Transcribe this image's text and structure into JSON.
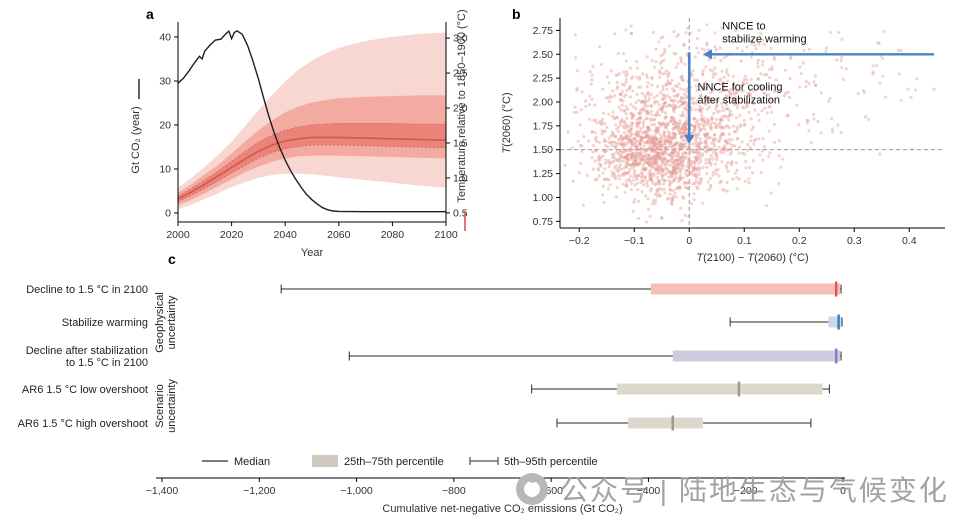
{
  "panels": {
    "a": "a",
    "b": "b",
    "c": "c"
  },
  "watermark": {
    "icon": "aperture-logo-icon",
    "text": "公众号 | 陆地生态与气候变化"
  },
  "chart_data": [
    {
      "id": "panel_a",
      "type": "line",
      "title": "",
      "xlabel": "Year",
      "ylabel_left": "Gt CO₂ (year)",
      "ylabel_right": "Temperature relative to 1850–1900 (°C)",
      "xlim": [
        2000,
        2100
      ],
      "ylim_left": [
        -2.05,
        43.4
      ],
      "ylim_right": [
        0.37,
        3.23
      ],
      "x_ticks": [
        2000,
        2020,
        2040,
        2060,
        2080,
        2100
      ],
      "y_left_ticks": [
        0,
        10,
        20,
        30,
        40
      ],
      "y_right_ticks": [
        0.5,
        1.0,
        1.5,
        2.0,
        2.5,
        3.0
      ],
      "y_right_tick_labels": [
        "0.5",
        "1.0",
        "1.5",
        "2.0",
        "2.5",
        "3.0"
      ],
      "emissions": {
        "name": "median-emissions-line",
        "color": "#1f1f1f",
        "points": [
          [
            2000,
            29.5
          ],
          [
            2002,
            30.6
          ],
          [
            2004,
            32.2
          ],
          [
            2006,
            34.0
          ],
          [
            2008,
            35.6
          ],
          [
            2009,
            35.0
          ],
          [
            2010,
            36.8
          ],
          [
            2012,
            38.2
          ],
          [
            2014,
            39.3
          ],
          [
            2016,
            39.5
          ],
          [
            2018,
            40.8
          ],
          [
            2019,
            41.3
          ],
          [
            2020,
            39.6
          ],
          [
            2021,
            41.0
          ],
          [
            2022,
            41.4
          ],
          [
            2024,
            40.6
          ],
          [
            2026,
            38.0
          ],
          [
            2028,
            34.5
          ],
          [
            2030,
            30.5
          ],
          [
            2032,
            26.0
          ],
          [
            2034,
            21.8
          ],
          [
            2036,
            18.0
          ],
          [
            2038,
            14.8
          ],
          [
            2040,
            12.0
          ],
          [
            2042,
            9.6
          ],
          [
            2044,
            7.6
          ],
          [
            2046,
            5.8
          ],
          [
            2048,
            4.2
          ],
          [
            2050,
            3.0
          ],
          [
            2052,
            2.0
          ],
          [
            2054,
            1.2
          ],
          [
            2056,
            0.7
          ],
          [
            2058,
            0.45
          ],
          [
            2060,
            0.35
          ],
          [
            2070,
            0.3
          ],
          [
            2080,
            0.3
          ],
          [
            2090,
            0.3
          ],
          [
            2100,
            0.3
          ]
        ]
      },
      "temperature": {
        "band_levels": [
          "5–95%",
          "17–83%",
          "33–67%"
        ],
        "band_colors": [
          "#f8d7d2",
          "#f2aaa1",
          "#ea837a"
        ],
        "median_color": "#d2574d",
        "quantile_labels": [
          "p5",
          "p17",
          "p33",
          "median",
          "p67",
          "p83",
          "p95"
        ],
        "years": [
          2000,
          2005,
          2010,
          2015,
          2020,
          2025,
          2030,
          2035,
          2040,
          2045,
          2050,
          2055,
          2060,
          2070,
          2080,
          2090,
          2100
        ],
        "quantiles": [
          [
            0.55,
            0.61,
            0.66,
            0.7,
            0.74,
            0.79,
            0.86
          ],
          [
            0.62,
            0.69,
            0.75,
            0.8,
            0.85,
            0.91,
            1.0
          ],
          [
            0.7,
            0.78,
            0.85,
            0.91,
            0.97,
            1.05,
            1.16
          ],
          [
            0.78,
            0.88,
            0.96,
            1.03,
            1.1,
            1.19,
            1.33
          ],
          [
            0.87,
            0.98,
            1.07,
            1.15,
            1.24,
            1.35,
            1.52
          ],
          [
            0.94,
            1.08,
            1.18,
            1.27,
            1.38,
            1.52,
            1.74
          ],
          [
            1.0,
            1.16,
            1.28,
            1.38,
            1.51,
            1.68,
            1.97
          ],
          [
            1.04,
            1.23,
            1.36,
            1.47,
            1.61,
            1.82,
            2.18
          ],
          [
            1.06,
            1.28,
            1.42,
            1.53,
            1.68,
            1.94,
            2.38
          ],
          [
            1.06,
            1.31,
            1.45,
            1.56,
            1.73,
            2.02,
            2.55
          ],
          [
            1.05,
            1.32,
            1.47,
            1.58,
            1.76,
            2.08,
            2.68
          ],
          [
            1.03,
            1.32,
            1.47,
            1.58,
            1.77,
            2.11,
            2.78
          ],
          [
            1.01,
            1.32,
            1.47,
            1.58,
            1.78,
            2.14,
            2.86
          ],
          [
            0.97,
            1.31,
            1.46,
            1.57,
            1.78,
            2.16,
            2.96
          ],
          [
            0.93,
            1.3,
            1.45,
            1.56,
            1.78,
            2.17,
            3.02
          ],
          [
            0.89,
            1.29,
            1.44,
            1.55,
            1.77,
            2.18,
            3.06
          ],
          [
            0.86,
            1.28,
            1.43,
            1.54,
            1.77,
            2.18,
            3.08
          ]
        ]
      }
    },
    {
      "id": "panel_b",
      "type": "scatter",
      "xlabel": "*T*(2100) − *T*(2060) (°C)",
      "ylabel": "*T*(2060) (°C)",
      "xlim": [
        -0.235,
        0.465
      ],
      "ylim": [
        0.68,
        2.88
      ],
      "x_ticks": [
        -0.2,
        -0.1,
        0,
        0.1,
        0.2,
        0.3,
        0.4
      ],
      "x_tick_labels": [
        "−0.2",
        "−0.1",
        "0",
        "0.1",
        "0.2",
        "0.3",
        "0.4"
      ],
      "y_ticks": [
        0.75,
        1.0,
        1.25,
        1.5,
        1.75,
        2.0,
        2.25,
        2.5,
        2.75
      ],
      "y_tick_labels": [
        "0.75",
        "1.00",
        "1.25",
        "1.50",
        "1.75",
        "2.00",
        "2.25",
        "2.50",
        "2.75"
      ],
      "ref_lines": {
        "vertical_x": 0,
        "horizontal_y": 1.5,
        "color": "#8a8a8a"
      },
      "point_style": {
        "color": "#e59d97",
        "opacity": 0.45,
        "radius": 1.6
      },
      "scatter_spec": {
        "seed": 7,
        "clusters": [
          {
            "n": 1000,
            "cx": -0.055,
            "cy": 1.48,
            "sx": 0.055,
            "sy": 0.24
          },
          {
            "n": 550,
            "cx": -0.025,
            "cy": 1.8,
            "sx": 0.085,
            "sy": 0.34
          },
          {
            "n": 300,
            "cx": 0.04,
            "cy": 2.0,
            "sx": 0.14,
            "sy": 0.42
          },
          {
            "n": 120,
            "cx": 0.12,
            "cy": 2.3,
            "sx": 0.16,
            "sy": 0.3
          }
        ]
      },
      "arrow_color": "#4a82c4",
      "arrows": [
        {
          "dir": "left",
          "x1": 0.445,
          "x2": 0.025,
          "y": 2.5
        },
        {
          "dir": "down",
          "x": 0.0,
          "y1": 2.52,
          "y2": 1.56
        }
      ],
      "annotations": [
        {
          "lines": [
            "NNCE to",
            "stabilize warming"
          ],
          "x": 0.06,
          "y": 2.76,
          "line_h": 0.135
        },
        {
          "lines": [
            "NNCE for cooling",
            "after stabilization"
          ],
          "x": 0.015,
          "y": 2.12,
          "line_h": 0.135
        }
      ]
    },
    {
      "id": "panel_c",
      "type": "box",
      "xlabel": "Cumulative net-negative CO₂ emissions (Gt CO₂)",
      "xlim": [
        -1400,
        0
      ],
      "x_ticks": [
        -1400,
        -1200,
        -1000,
        -800,
        -600,
        -400,
        -200,
        0
      ],
      "x_tick_labels": [
        "−1,400",
        "−1,200",
        "−1,000",
        "−800",
        "−600",
        "−400",
        "−200",
        "0"
      ],
      "groups": [
        {
          "label_lines": [
            "Geophysical",
            "uncertainty"
          ],
          "row_span": [
            0,
            2
          ]
        },
        {
          "label_lines": [
            "Scenario",
            "uncertainty"
          ],
          "row_span": [
            3,
            4
          ]
        }
      ],
      "rows": [
        {
          "label_lines": [
            "Decline to 1.5 °C in 2100"
          ],
          "p5": -1155,
          "p25": -395,
          "median": -14,
          "p75": -6,
          "p95": -4,
          "box_color": "#f5bfb8",
          "median_color": "#e4564a"
        },
        {
          "label_lines": [
            "Stabilize warming"
          ],
          "p5": -232,
          "p25": -30,
          "median": -9,
          "p75": -3,
          "p95": -2,
          "box_color": "#c9d9ec",
          "median_color": "#3f7fc1"
        },
        {
          "label_lines": [
            "Decline after stabilization",
            "to 1.5 °C in 2100"
          ],
          "p5": -1015,
          "p25": -350,
          "median": -14,
          "p75": -6,
          "p95": -4,
          "box_color": "#cbcce0",
          "median_color": "#7e82c4"
        },
        {
          "label_lines": [
            "AR6 1.5 °C low overshoot"
          ],
          "p5": -640,
          "p25": -465,
          "median": -214,
          "p75": -42,
          "p95": -28,
          "box_color": "#ddd8cd",
          "median_color": "#a09a8c"
        },
        {
          "label_lines": [
            "AR6 1.5 °C high overshoot"
          ],
          "p5": -588,
          "p25": -442,
          "median": -350,
          "p75": -288,
          "p95": -66,
          "box_color": "#ddd8cd",
          "median_color": "#a09a8c"
        }
      ],
      "legend": [
        {
          "symbol": "line",
          "label": "Median"
        },
        {
          "symbol": "box",
          "label": "25th–75th percentile",
          "color": "#cfc9bf"
        },
        {
          "symbol": "whisker",
          "label": "5th–95th percentile"
        }
      ]
    }
  ]
}
